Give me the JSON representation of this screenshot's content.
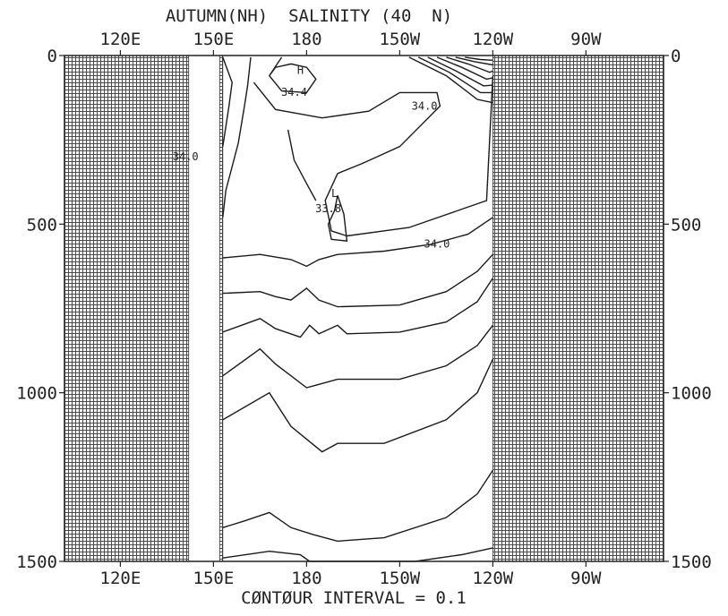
{
  "chart_data": {
    "type": "contour",
    "title": "AUTUMN(NH)  SALINITY (40  N)",
    "footer": "CØNTØUR INTERVAL = 0.1",
    "x_ticks_top": [
      "120E",
      "150E",
      "180",
      "150W",
      "120W",
      "90W"
    ],
    "x_ticks_bottom": [
      "120E",
      "150E",
      "180",
      "150W",
      "120W",
      "90W"
    ],
    "x_tick_lon": [
      120,
      150,
      180,
      210,
      240,
      270
    ],
    "y_ticks": [
      "0",
      "500",
      "1000",
      "1500"
    ],
    "y_tick_depth": [
      0,
      500,
      1000,
      1500
    ],
    "xlim": [
      102,
      295
    ],
    "ylim": [
      0,
      1500
    ],
    "contour_interval": 0.1,
    "annotations": [
      {
        "text": "H",
        "lon": 178,
        "depth": 55
      },
      {
        "text": "34.4",
        "lon": 176,
        "depth": 120
      },
      {
        "text": "34.0",
        "lon": 141,
        "depth": 310
      },
      {
        "text": "34.0",
        "lon": 218,
        "depth": 160
      },
      {
        "text": "L",
        "lon": 189,
        "depth": 420
      },
      {
        "text": "33.8",
        "lon": 187,
        "depth": 465
      },
      {
        "text": "34.0",
        "lon": 222,
        "depth": 570
      }
    ],
    "contours": [
      [
        [
          153,
          600
        ],
        [
          165,
          590
        ],
        [
          175,
          605
        ],
        [
          180,
          625
        ],
        [
          184,
          605
        ],
        [
          190,
          590
        ],
        [
          205,
          580
        ],
        [
          220,
          560
        ],
        [
          232,
          530
        ],
        [
          240,
          480
        ]
      ],
      [
        [
          153,
          705
        ],
        [
          165,
          700
        ],
        [
          170,
          715
        ],
        [
          175,
          725
        ],
        [
          180,
          690
        ],
        [
          184,
          725
        ],
        [
          190,
          745
        ],
        [
          210,
          740
        ],
        [
          225,
          700
        ],
        [
          235,
          640
        ],
        [
          240,
          590
        ]
      ],
      [
        [
          153,
          820
        ],
        [
          165,
          780
        ],
        [
          170,
          810
        ],
        [
          178,
          835
        ],
        [
          181,
          800
        ],
        [
          184,
          825
        ],
        [
          190,
          800
        ],
        [
          193,
          825
        ],
        [
          210,
          820
        ],
        [
          225,
          790
        ],
        [
          235,
          730
        ],
        [
          240,
          660
        ]
      ],
      [
        [
          153,
          950
        ],
        [
          165,
          870
        ],
        [
          170,
          915
        ],
        [
          180,
          985
        ],
        [
          184,
          975
        ],
        [
          190,
          960
        ],
        [
          210,
          960
        ],
        [
          225,
          920
        ],
        [
          235,
          860
        ],
        [
          240,
          800
        ]
      ],
      [
        [
          153,
          1080
        ],
        [
          168,
          1000
        ],
        [
          175,
          1100
        ],
        [
          185,
          1175
        ],
        [
          190,
          1150
        ],
        [
          205,
          1150
        ],
        [
          225,
          1080
        ],
        [
          235,
          1000
        ],
        [
          240,
          900
        ]
      ],
      [
        [
          153,
          1400
        ],
        [
          160,
          1380
        ],
        [
          168,
          1355
        ],
        [
          175,
          1400
        ],
        [
          182,
          1420
        ],
        [
          190,
          1440
        ],
        [
          205,
          1430
        ],
        [
          225,
          1370
        ],
        [
          235,
          1300
        ],
        [
          240,
          1230
        ]
      ],
      [
        [
          153,
          1490
        ],
        [
          168,
          1470
        ],
        [
          178,
          1480
        ],
        [
          181,
          1500
        ],
        [
          215,
          1500
        ],
        [
          230,
          1480
        ],
        [
          240,
          1460
        ]
      ],
      [
        [
          153,
          5
        ],
        [
          156,
          80
        ],
        [
          155,
          150
        ],
        [
          153,
          270
        ]
      ],
      [
        [
          162,
          5
        ],
        [
          161,
          90
        ],
        [
          160,
          150
        ],
        [
          158,
          260
        ],
        [
          154,
          400
        ],
        [
          153,
          480
        ]
      ],
      [
        [
          172,
          5
        ],
        [
          168,
          60
        ],
        [
          172,
          105
        ],
        [
          180,
          110
        ],
        [
          183,
          70
        ],
        [
          180,
          35
        ],
        [
          175,
          25
        ],
        [
          170,
          35
        ],
        [
          168,
          60
        ]
      ],
      [
        [
          163,
          80
        ],
        [
          170,
          160
        ],
        [
          185,
          185
        ],
        [
          200,
          165
        ],
        [
          210,
          110
        ],
        [
          222,
          110
        ],
        [
          223,
          150
        ],
        [
          210,
          270
        ],
        [
          198,
          320
        ],
        [
          190,
          350
        ],
        [
          186,
          430
        ],
        [
          188,
          520
        ],
        [
          193,
          535
        ],
        [
          213,
          510
        ],
        [
          238,
          430
        ],
        [
          240,
          60
        ]
      ],
      [
        [
          174,
          220
        ],
        [
          176,
          310
        ],
        [
          180,
          380
        ],
        [
          183,
          430
        ]
      ],
      [
        [
          190,
          415
        ],
        [
          189,
          460
        ],
        [
          187,
          500
        ],
        [
          188,
          545
        ],
        [
          193,
          550
        ],
        [
          192,
          470
        ],
        [
          190,
          415
        ]
      ],
      [
        [
          213,
          5
        ],
        [
          225,
          60
        ],
        [
          235,
          130
        ],
        [
          240,
          140
        ]
      ],
      [
        [
          216,
          5
        ],
        [
          226,
          50
        ],
        [
          236,
          110
        ],
        [
          240,
          110
        ]
      ],
      [
        [
          219,
          5
        ],
        [
          228,
          45
        ],
        [
          237,
          90
        ],
        [
          240,
          88
        ]
      ],
      [
        [
          222,
          5
        ],
        [
          230,
          35
        ],
        [
          238,
          70
        ],
        [
          240,
          66
        ]
      ],
      [
        [
          225,
          5
        ],
        [
          232,
          25
        ],
        [
          239,
          50
        ],
        [
          240,
          46
        ]
      ],
      [
        [
          228,
          5
        ],
        [
          234,
          18
        ],
        [
          240,
          28
        ]
      ],
      [
        [
          231,
          5
        ],
        [
          236,
          12
        ],
        [
          240,
          14
        ]
      ]
    ]
  },
  "colors": {
    "land": "#8a8a8a",
    "line": "#1a1a1a"
  }
}
